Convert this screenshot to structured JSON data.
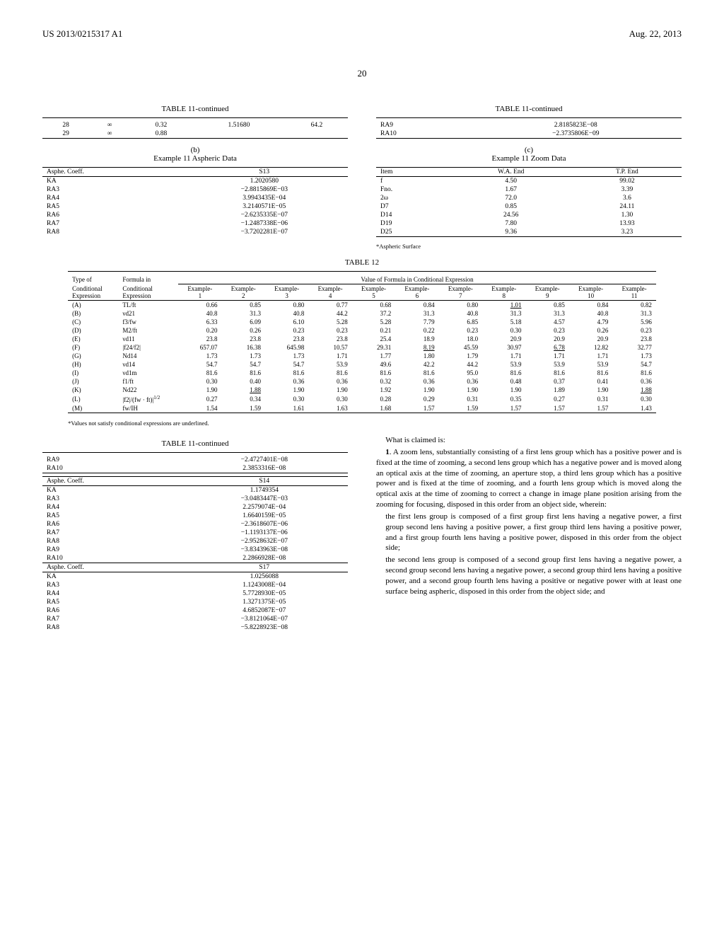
{
  "header": {
    "left": "US 2013/0215317 A1",
    "right": "Aug. 22, 2013"
  },
  "page_number": "20",
  "tables": {
    "t11a": {
      "title": "TABLE 11-continued",
      "rows": [
        [
          "28",
          "∞",
          "0.32",
          "1.51680",
          "64.2"
        ],
        [
          "29",
          "∞",
          "0.88",
          "",
          ""
        ]
      ]
    },
    "t11b_header": {
      "line1": "(b)",
      "line2": "Example 11 Aspheric Data"
    },
    "t11b_s13": {
      "col_head_left": "Asphe. Coeff.",
      "col_head_right": "S13",
      "rows": [
        [
          "KA",
          "1.2020580"
        ],
        [
          "RA3",
          "−2.8815869E−03"
        ],
        [
          "RA4",
          "3.9943435E−04"
        ],
        [
          "RA5",
          "3.2140571E−05"
        ],
        [
          "RA6",
          "−2.6235335E−07"
        ],
        [
          "RA7",
          "−1.2487338E−06"
        ],
        [
          "RA8",
          "−3.7202281E−07"
        ]
      ]
    },
    "t11b_top2": {
      "title": "TABLE 11-continued",
      "rows": [
        [
          "RA9",
          "2.8185823E−08"
        ],
        [
          "RA10",
          "−2.3735806E−09"
        ]
      ]
    },
    "t11c_header": {
      "line1": "(c)",
      "line2": "Example 11 Zoom Data"
    },
    "t11c": {
      "cols": [
        "Item",
        "W.A. End",
        "T.P. End"
      ],
      "rows": [
        [
          "f",
          "4.50",
          "99.02"
        ],
        [
          "Fno.",
          "1.67",
          "3.39"
        ],
        [
          "2ω",
          "72.0",
          "3.6"
        ],
        [
          "D7",
          "0.85",
          "24.11"
        ],
        [
          "D14",
          "24.56",
          "1.30"
        ],
        [
          "D19",
          "7.80",
          "13.93"
        ],
        [
          "D25",
          "9.36",
          "3.23"
        ]
      ],
      "footnote": "*Aspheric Surface"
    },
    "t12": {
      "title": "TABLE 12",
      "head1_left": "Type of",
      "head1_mid": "Formula in",
      "head1_right": "Value of Formula in Conditional Expression",
      "head2": [
        "Conditional Expression",
        "Conditional Expression",
        "Example 1",
        "Example 2",
        "Example 3",
        "Example 4",
        "Example 5",
        "Example 6",
        "Example 7",
        "Example 8",
        "Example 9",
        "Example 10",
        "Example 11"
      ],
      "rows": [
        [
          "(A)",
          "TL/ft",
          "0.66",
          "0.85",
          "0.80",
          "0.77",
          "0.68",
          "0.84",
          "0.80",
          "1.01",
          "0.85",
          "0.84",
          "0.82"
        ],
        [
          "(B)",
          "νd21",
          "40.8",
          "31.3",
          "40.8",
          "44.2",
          "37.2",
          "31.3",
          "40.8",
          "31.3",
          "31.3",
          "40.8",
          "31.3"
        ],
        [
          "(C)",
          "f3/fw",
          "6.33",
          "6.09",
          "6.10",
          "5.28",
          "5.28",
          "7.79",
          "6.85",
          "5.18",
          "4.57",
          "4.79",
          "5.96"
        ],
        [
          "(D)",
          "M2/ft",
          "0.20",
          "0.26",
          "0.23",
          "0.23",
          "0.21",
          "0.22",
          "0.23",
          "0.30",
          "0.23",
          "0.26",
          "0.23"
        ],
        [
          "(E)",
          "νd11",
          "23.8",
          "23.8",
          "23.8",
          "23.8",
          "25.4",
          "18.9",
          "18.0",
          "20.9",
          "20.9",
          "20.9",
          "23.8"
        ],
        [
          "(F)",
          "|f24/f2|",
          "657.07",
          "16.38",
          "645.98",
          "10.57",
          "29.31",
          "8.19",
          "45.59",
          "30.97",
          "6.78",
          "12.82",
          "32.77"
        ],
        [
          "(G)",
          "Nd14",
          "1.73",
          "1.73",
          "1.73",
          "1.71",
          "1.77",
          "1.80",
          "1.79",
          "1.71",
          "1.71",
          "1.71",
          "1.73"
        ],
        [
          "(H)",
          "νd14",
          "54.7",
          "54.7",
          "54.7",
          "53.9",
          "49.6",
          "42.2",
          "44.2",
          "53.9",
          "53.9",
          "53.9",
          "54.7"
        ],
        [
          "(I)",
          "νd1m",
          "81.6",
          "81.6",
          "81.6",
          "81.6",
          "81.6",
          "81.6",
          "95.0",
          "81.6",
          "81.6",
          "81.6",
          "81.6"
        ],
        [
          "(J)",
          "f1/ft",
          "0.30",
          "0.40",
          "0.36",
          "0.36",
          "0.32",
          "0.36",
          "0.36",
          "0.48",
          "0.37",
          "0.41",
          "0.36"
        ],
        [
          "(K)",
          "Nd22",
          "1.90",
          "1.88",
          "1.90",
          "1.90",
          "1.92",
          "1.90",
          "1.90",
          "1.90",
          "1.89",
          "1.90",
          "1.88"
        ],
        [
          "(L)",
          "|f2|/(fw · ft)|^{1/2}",
          "0.27",
          "0.34",
          "0.30",
          "0.30",
          "0.28",
          "0.29",
          "0.31",
          "0.35",
          "0.27",
          "0.31",
          "0.30"
        ],
        [
          "(M)",
          "fw/IH",
          "1.54",
          "1.59",
          "1.61",
          "1.63",
          "1.68",
          "1.57",
          "1.59",
          "1.57",
          "1.57",
          "1.57",
          "1.43"
        ]
      ],
      "underlined": [
        [
          0,
          8
        ],
        [
          5,
          6
        ],
        [
          5,
          9
        ],
        [
          10,
          2
        ],
        [
          10,
          11
        ]
      ],
      "footnote": "*Values not satisfy conditional expressions are underlined."
    },
    "t11d": {
      "title": "TABLE 11-continued",
      "blocks": [
        {
          "rows": [
            [
              "RA9",
              "−2.4727401E−08"
            ],
            [
              "RA10",
              "2.3853316E−08"
            ]
          ]
        },
        {
          "head": [
            "Asphe. Coeff.",
            "S14"
          ],
          "rows": [
            [
              "KA",
              "1.1749354"
            ],
            [
              "RA3",
              "−3.0483447E−03"
            ],
            [
              "RA4",
              "2.2579074E−04"
            ],
            [
              "RA5",
              "1.6640159E−05"
            ],
            [
              "RA6",
              "−2.3618607E−06"
            ],
            [
              "RA7",
              "−1.1193137E−06"
            ],
            [
              "RA8",
              "−2.9528632E−07"
            ],
            [
              "RA9",
              "−3.8343963E−08"
            ],
            [
              "RA10",
              "2.2866928E−08"
            ]
          ]
        },
        {
          "head": [
            "Asphe. Coeff.",
            "S17"
          ],
          "rows": [
            [
              "KA",
              "1.0256088"
            ],
            [
              "RA3",
              "1.1243008E−04"
            ],
            [
              "RA4",
              "5.7728930E−05"
            ],
            [
              "RA5",
              "1.3271375E−05"
            ],
            [
              "RA6",
              "4.6852087E−07"
            ],
            [
              "RA7",
              "−3.8121064E−07"
            ],
            [
              "RA8",
              "−5.8228923E−08"
            ]
          ]
        }
      ]
    }
  },
  "claim": {
    "intro": "What is claimed is:",
    "num": "1",
    "text1": ". A zoom lens, substantially consisting of a first lens group which has a positive power and is fixed at the time of zooming, a second lens group which has a negative power and is moved along an optical axis at the time of zooming, an aperture stop, a third lens group which has a positive power and is fixed at the time of zooming, and a fourth lens group which is moved along the optical axis at the time of zooming to correct a change in image plane position arising from the zooming for focusing, disposed in this order from an object side, wherein:",
    "text2": "the first lens group is composed of a first group first lens having a negative power, a first group second lens having a positive power, a first group third lens having a positive power, and a first group fourth lens having a positive power, disposed in this order from the object side;",
    "text3": "the second lens group is composed of a second group first lens having a negative power, a second group second lens having a negative power, a second group third lens having a positive power, and a second group fourth lens having a positive or negative power with at least one surface being aspheric, disposed in this order from the object side; and"
  }
}
